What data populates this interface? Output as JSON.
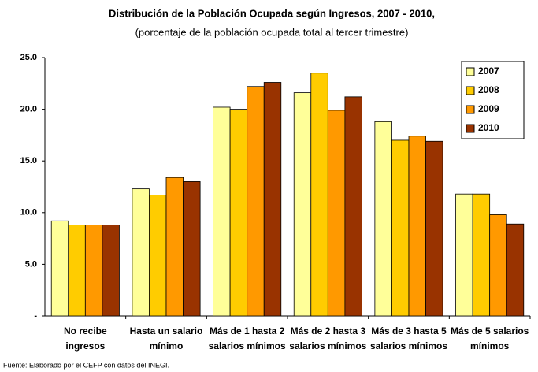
{
  "chart_data": {
    "type": "bar",
    "title": "Distribución de la Población Ocupada según Ingresos, 2007 - 2010,",
    "subtitle": "(porcentaje de la población ocupada total al tercer trimestre)",
    "categories": [
      "No recibe ingresos",
      "Hasta un salario mínimo",
      "Más de 1 hasta 2 salarios mínimos",
      "Más de 2 hasta 3 salarios mínimos",
      "Más de 3 hasta 5 salarios mínimos",
      "Más de 5 salarios mínimos"
    ],
    "series": [
      {
        "name": "2007",
        "color": "#ffff99",
        "values": [
          9.2,
          12.3,
          20.2,
          21.6,
          18.8,
          11.8
        ]
      },
      {
        "name": "2008",
        "color": "#ffcc00",
        "values": [
          8.8,
          11.7,
          20.0,
          23.5,
          17.0,
          11.8
        ]
      },
      {
        "name": "2009",
        "color": "#ff9900",
        "values": [
          8.8,
          13.4,
          22.2,
          19.9,
          17.4,
          9.8
        ]
      },
      {
        "name": "2010",
        "color": "#993300",
        "values": [
          8.8,
          13.0,
          22.6,
          21.2,
          16.9,
          8.9
        ]
      }
    ],
    "ylim": [
      0,
      25
    ],
    "yticks": [
      {
        "value": 0,
        "label": "-"
      },
      {
        "value": 5,
        "label": "5.0"
      },
      {
        "value": 10,
        "label": "10.0"
      },
      {
        "value": 15,
        "label": "15.0"
      },
      {
        "value": 20,
        "label": "20.0"
      },
      {
        "value": 25,
        "label": "25.0"
      }
    ],
    "grid": false,
    "legend": "top-right",
    "note": "Fuente: Elaborado por el CEFP con datos del INEGI."
  }
}
